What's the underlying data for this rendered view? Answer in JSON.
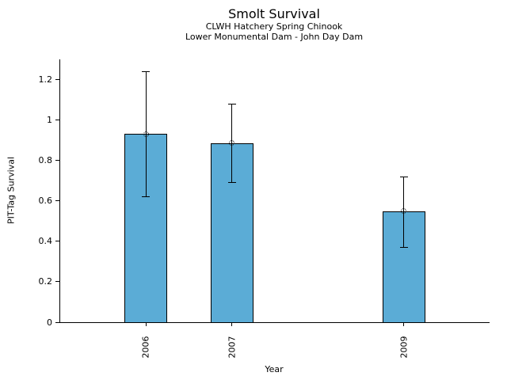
{
  "chart_data": {
    "type": "bar",
    "title": "Smolt Survival",
    "subtitles": [
      "CLWH Hatchery Spring Chinook",
      "Lower Monumental Dam - John Day Dam"
    ],
    "xlabel": "Year",
    "ylabel": "PIT-Tag Survival",
    "categories": [
      "2006",
      "2007",
      "2009"
    ],
    "x": [
      2006,
      2007,
      2009
    ],
    "values": [
      0.93,
      0.885,
      0.55
    ],
    "error_low": [
      0.62,
      0.69,
      0.37
    ],
    "error_high": [
      1.24,
      1.08,
      0.72
    ],
    "xlim": [
      2005,
      2010
    ],
    "ylim": [
      0,
      1.3
    ],
    "yticks": [
      0,
      0.2,
      0.4,
      0.6,
      0.8,
      1,
      1.2
    ],
    "ytick_labels": [
      "0",
      "0.2",
      "0.4",
      "0.6",
      "0.8",
      "1",
      "1.2"
    ],
    "bar_width_years": 0.5,
    "bar_color": "#5BACD6",
    "bar_edge_color": "#000000",
    "error_color": "#000000",
    "marker": "open-circle-dotted",
    "grid": false,
    "legend": null,
    "background_color": "#ffffff"
  }
}
